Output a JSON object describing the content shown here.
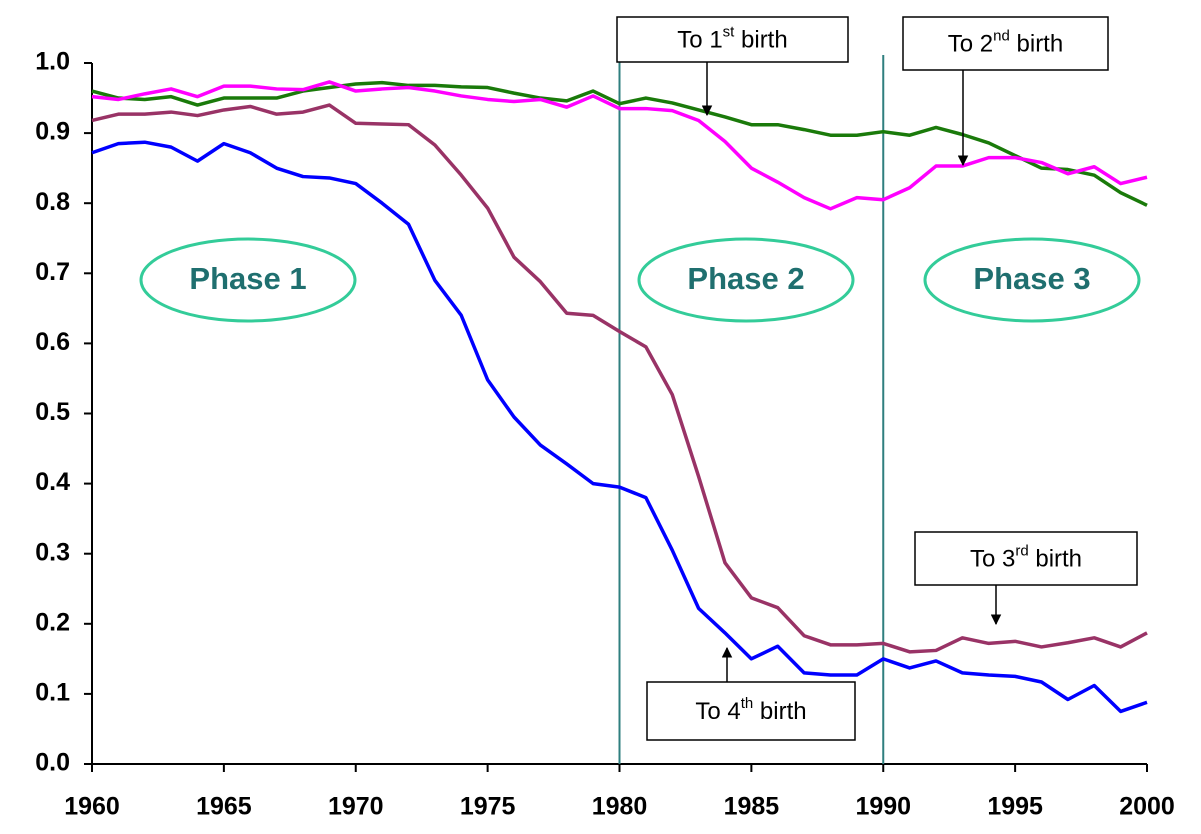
{
  "chart_data": {
    "type": "line",
    "x": [
      1960,
      1961,
      1962,
      1963,
      1964,
      1965,
      1966,
      1967,
      1968,
      1969,
      1970,
      1971,
      1972,
      1973,
      1974,
      1975,
      1976,
      1977,
      1978,
      1979,
      1980,
      1981,
      1982,
      1983,
      1984,
      1985,
      1986,
      1987,
      1988,
      1989,
      1990,
      1991,
      1992,
      1993,
      1994,
      1995,
      1996,
      1997,
      1998,
      1999,
      2000
    ],
    "xlim": [
      1960,
      2000
    ],
    "xticks": [
      1960,
      1965,
      1970,
      1975,
      1980,
      1985,
      1990,
      1995,
      2000
    ],
    "ylim": [
      0,
      1
    ],
    "yticks": [
      {
        "value": 0,
        "label": "0.0"
      },
      0.1,
      0.2,
      0.3,
      0.4,
      0.5,
      0.6,
      0.7,
      0.8,
      0.9,
      {
        "value": 1,
        "label": "1.0"
      }
    ],
    "grid": false,
    "vlines": [
      1980,
      1990
    ],
    "vline_color": "#2f7f7f",
    "series": [
      {
        "color": "#1a7a0a",
        "values": [
          0.96,
          0.95,
          0.948,
          0.952,
          0.94,
          0.95,
          0.95,
          0.95,
          0.96,
          0.965,
          0.97,
          0.972,
          0.968,
          0.968,
          0.966,
          0.965,
          0.957,
          0.95,
          0.946,
          0.96,
          0.942,
          0.95,
          0.943,
          0.933,
          0.923,
          0.912,
          0.912,
          0.905,
          0.897,
          0.897,
          0.902,
          0.897,
          0.908,
          0.898,
          0.886,
          0.868,
          0.85,
          0.848,
          0.84,
          0.815,
          0.797
        ]
      },
      {
        "color": "#ff00ff",
        "values": [
          0.952,
          0.948,
          0.956,
          0.963,
          0.952,
          0.967,
          0.967,
          0.963,
          0.962,
          0.973,
          0.96,
          0.963,
          0.965,
          0.96,
          0.953,
          0.948,
          0.945,
          0.948,
          0.937,
          0.953,
          0.935,
          0.935,
          0.932,
          0.918,
          0.888,
          0.85,
          0.83,
          0.808,
          0.792,
          0.808,
          0.805,
          0.822,
          0.853,
          0.853,
          0.865,
          0.865,
          0.858,
          0.842,
          0.852,
          0.828,
          0.837
        ]
      },
      {
        "color": "#993366",
        "values": [
          0.918,
          0.927,
          0.927,
          0.93,
          0.925,
          0.933,
          0.938,
          0.927,
          0.93,
          0.94,
          0.914,
          0.913,
          0.912,
          0.883,
          0.84,
          0.793,
          0.723,
          0.688,
          0.643,
          0.64,
          0.617,
          0.595,
          0.527,
          0.41,
          0.287,
          0.237,
          0.223,
          0.183,
          0.17,
          0.17,
          0.172,
          0.16,
          0.162,
          0.18,
          0.172,
          0.175,
          0.167,
          0.173,
          0.18,
          0.167,
          0.187
        ]
      },
      {
        "color": "#0000ff",
        "values": [
          0.872,
          0.885,
          0.887,
          0.88,
          0.86,
          0.885,
          0.872,
          0.85,
          0.838,
          0.836,
          0.828,
          0.8,
          0.77,
          0.69,
          0.64,
          0.548,
          0.495,
          0.455,
          0.428,
          0.4,
          0.395,
          0.38,
          0.305,
          0.222,
          0.187,
          0.15,
          0.168,
          0.13,
          0.127,
          0.127,
          0.15,
          0.137,
          0.147,
          0.13,
          0.127,
          0.125,
          0.117,
          0.092,
          0.112,
          0.075,
          0.088
        ]
      }
    ],
    "phases": [
      "Phase 1",
      "Phase 2",
      "Phase 3"
    ],
    "annotations": [
      {
        "pre": "To 1",
        "sup": "st",
        "post": " birth"
      },
      {
        "pre": "To 2",
        "sup": "nd",
        "post": " birth"
      },
      {
        "pre": "To 3",
        "sup": "rd",
        "post": " birth"
      },
      {
        "pre": "To 4",
        "sup": "th",
        "post": " birth"
      }
    ]
  }
}
